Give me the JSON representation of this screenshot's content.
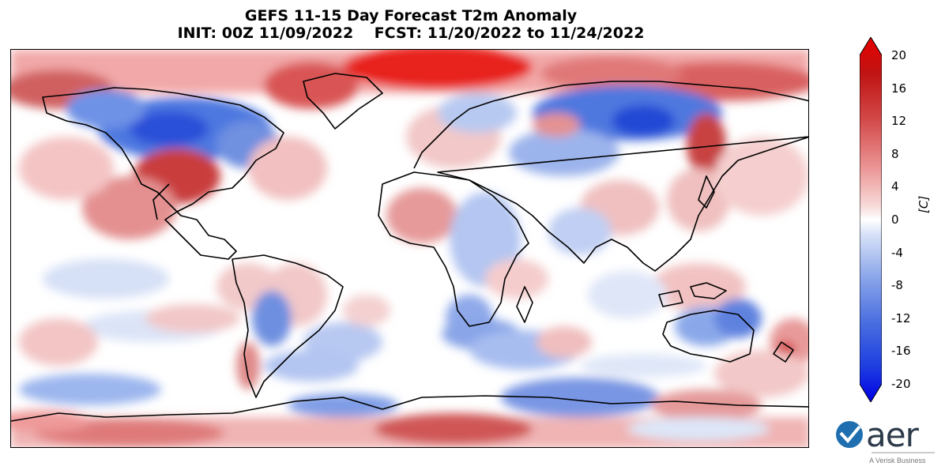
{
  "title": {
    "line1": "GEFS 11-15 Day Forecast T2m Anomaly",
    "line2": "INIT: 00Z 11/09/2022    FCST: 11/20/2022 to 11/24/2022"
  },
  "colorbar": {
    "ticks": [
      "20",
      "16",
      "12",
      "8",
      "4",
      "0",
      "-4",
      "-8",
      "-12",
      "-16",
      "-20"
    ],
    "unit_label": "[C]",
    "min": -20,
    "max": 20,
    "colors": {
      "max_extend": "#e60000",
      "min_extend": "#0000e6",
      "neutral": "#ffffff"
    }
  },
  "logo": {
    "wordmark": "aer",
    "tagline": "A Verisk Business",
    "brand_color": "#1f6fb0"
  }
}
